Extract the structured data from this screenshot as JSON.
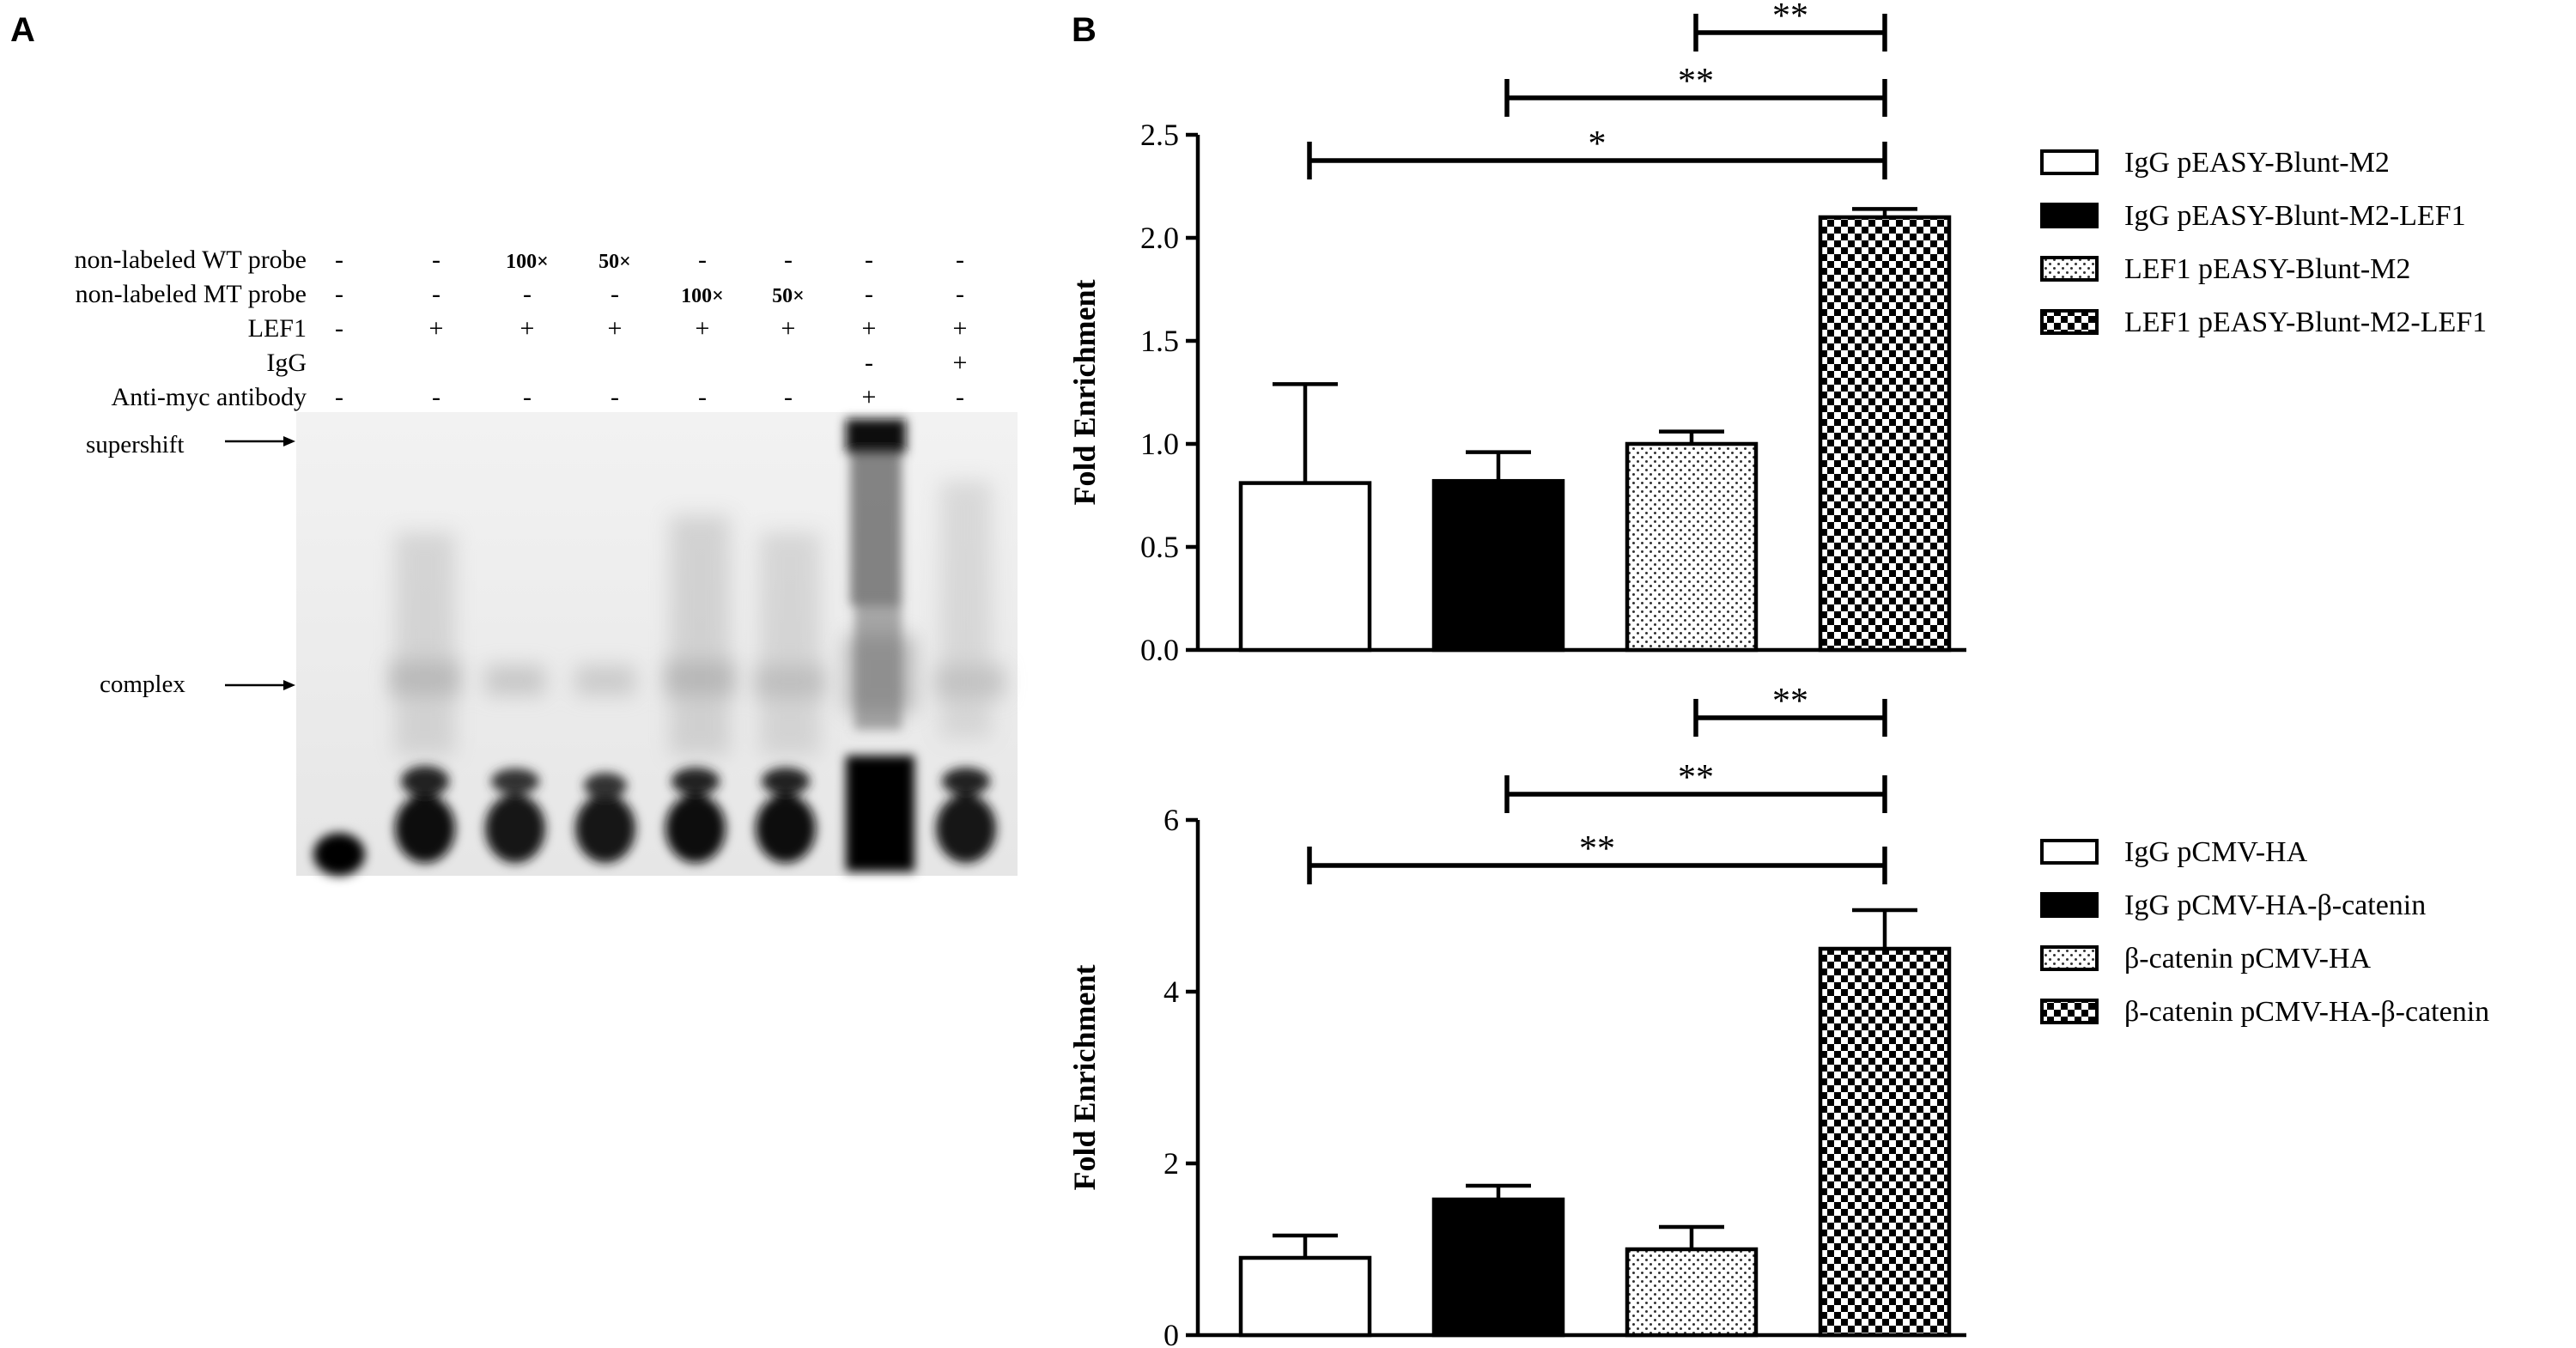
{
  "panels": {
    "a_label": "A",
    "b_label": "B"
  },
  "gel": {
    "row_labels": [
      "non-labeled WT probe",
      "non-labeled MT probe",
      "LEF1",
      "IgG",
      "Anti-myc antibody"
    ],
    "lane_symbols": [
      [
        "-",
        "-",
        "100×",
        "50×",
        "-",
        "-",
        "-",
        "-"
      ],
      [
        "-",
        "-",
        "-",
        "-",
        "100×",
        "50×",
        "-",
        "-"
      ],
      [
        "-",
        "+",
        "+",
        "+",
        "+",
        "+",
        "+",
        "+"
      ],
      [
        "",
        "",
        "",
        "",
        "",
        "",
        "-",
        "+"
      ],
      [
        "-",
        "-",
        "-",
        "-",
        "-",
        "-",
        "+",
        "-"
      ]
    ],
    "arrow_labels": {
      "supershift": "supershift",
      "complex": "complex"
    }
  },
  "chart_data": [
    {
      "type": "bar",
      "ylabel": "Fold Enrichment",
      "ylim": [
        0,
        2.5
      ],
      "yticks": [
        "0.0",
        "0.5",
        "1.0",
        "1.5",
        "2.0",
        "2.5"
      ],
      "categories": [
        "IgG pEASY-Blunt-M2",
        "IgG pEASY-Blunt-M2-LEF1",
        "LEF1 pEASY-Blunt-M2",
        "LEF1 pEASY-Blunt-M2-LEF1"
      ],
      "values": [
        0.81,
        0.82,
        1.0,
        2.1
      ],
      "errors": [
        0.48,
        0.14,
        0.06,
        0.04
      ],
      "patterns": [
        "open",
        "solid",
        "dotted",
        "checker"
      ],
      "legend": [
        "IgG pEASY-Blunt-M2",
        "IgG pEASY-Blunt-M2-LEF1",
        "LEF1 pEASY-Blunt-M2",
        "LEF1 pEASY-Blunt-M2-LEF1"
      ],
      "significance": [
        {
          "from": 2,
          "to": 3,
          "label": "**"
        },
        {
          "from": 1,
          "to": 3,
          "label": "**"
        },
        {
          "from": 0,
          "to": 3,
          "label": "*"
        }
      ],
      "legend_position": "right"
    },
    {
      "type": "bar",
      "ylabel": "Fold Enrichment",
      "ylim": [
        0,
        6
      ],
      "yticks": [
        "0",
        "2",
        "4",
        "6"
      ],
      "categories": [
        "IgG pCMV-HA",
        "IgG pCMV-HA-β-catenin",
        "β-catenin pCMV-HA",
        "β-catenin pCMV-HA-β-catenin"
      ],
      "values": [
        0.9,
        1.58,
        1.0,
        4.5
      ],
      "errors": [
        0.26,
        0.16,
        0.26,
        0.45
      ],
      "patterns": [
        "open",
        "solid",
        "dotted",
        "checker"
      ],
      "legend": [
        "IgG pCMV-HA",
        "IgG pCMV-HA-β-catenin",
        "β-catenin pCMV-HA",
        "β-catenin pCMV-HA-β-catenin"
      ],
      "significance": [
        {
          "from": 2,
          "to": 3,
          "label": "**"
        },
        {
          "from": 1,
          "to": 3,
          "label": "**"
        },
        {
          "from": 0,
          "to": 3,
          "label": "**"
        }
      ],
      "legend_position": "right"
    }
  ]
}
